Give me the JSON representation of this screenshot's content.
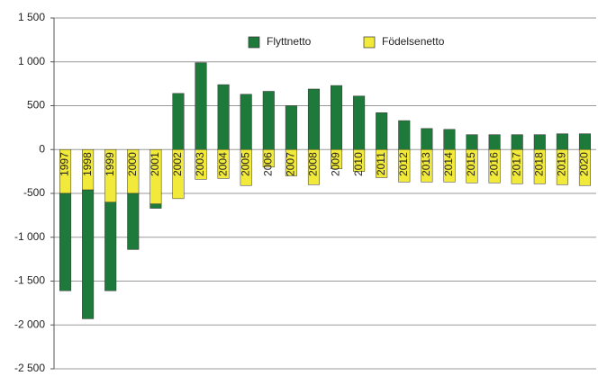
{
  "chart_data": {
    "type": "stacked_bar",
    "categories": [
      "1997",
      "1998",
      "1999",
      "2000",
      "2001",
      "2002",
      "2003",
      "2004",
      "2005",
      "2006",
      "2007",
      "2008",
      "2009",
      "2010",
      "2011",
      "2012",
      "2013",
      "2014",
      "2015",
      "2016",
      "2017",
      "2018",
      "2019",
      "2020"
    ],
    "series": [
      {
        "name": "Flyttnetto",
        "color": "#1e7a3a",
        "values": [
          -1110,
          -1470,
          -1010,
          -640,
          -50,
          640,
          990,
          740,
          630,
          664,
          500,
          690,
          730,
          610,
          420,
          330,
          240,
          230,
          170,
          170,
          170,
          170,
          180,
          180
        ]
      },
      {
        "name": "Födelsenetto",
        "color": "#f2ea3a",
        "values": [
          -500,
          -460,
          -600,
          -500,
          -620,
          -560,
          -340,
          -330,
          -410,
          -200,
          -300,
          -400,
          -220,
          -250,
          -320,
          -370,
          -370,
          -370,
          -380,
          -380,
          -390,
          -390,
          -400,
          -410
        ]
      }
    ],
    "ylim": [
      -2500,
      1500
    ],
    "yticks": [
      {
        "value": -2500,
        "label": "-2 500"
      },
      {
        "value": -2000,
        "label": "-2 000"
      },
      {
        "value": -1500,
        "label": "-1 500"
      },
      {
        "value": -1000,
        "label": "-1 000"
      },
      -500,
      0,
      500,
      {
        "value": 1000,
        "label": "1 000"
      },
      {
        "value": 1500,
        "label": "1 500"
      }
    ],
    "grid": true,
    "legend": "top"
  }
}
